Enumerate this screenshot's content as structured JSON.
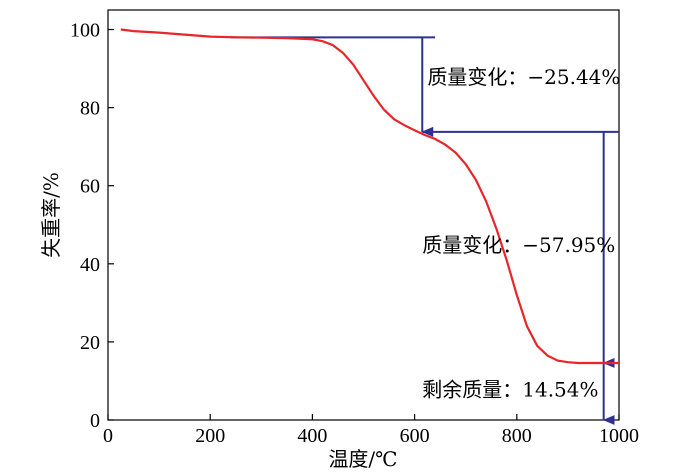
{
  "chart_data": {
    "type": "line",
    "title": "",
    "xlabel": "温度/℃",
    "ylabel": "失重率/%",
    "xlim": [
      0,
      1000
    ],
    "ylim": [
      0,
      105
    ],
    "x_ticks": [
      0,
      200,
      400,
      600,
      800,
      1000
    ],
    "y_ticks": [
      0,
      20,
      40,
      60,
      80,
      100
    ],
    "x_tick_labels": [
      "0",
      "200",
      "400",
      "600",
      "800",
      "1000"
    ],
    "y_tick_labels": [
      "0",
      "20",
      "40",
      "60",
      "80",
      "100"
    ],
    "grid": false,
    "legend": "none",
    "series": [
      {
        "color": "#e8262a",
        "x": [
          25,
          50,
          100,
          150,
          200,
          250,
          300,
          350,
          400,
          420,
          440,
          460,
          480,
          500,
          520,
          540,
          560,
          580,
          600,
          620,
          640,
          660,
          680,
          700,
          720,
          740,
          760,
          780,
          800,
          820,
          840,
          860,
          880,
          900,
          920,
          940,
          960,
          980,
          1000
        ],
        "y": [
          100,
          99.6,
          99.2,
          98.7,
          98.2,
          98.0,
          97.9,
          97.8,
          97.5,
          97.0,
          96.0,
          94.0,
          91.0,
          87.0,
          83.0,
          79.5,
          77.0,
          75.5,
          74.2,
          73.0,
          72.0,
          70.5,
          68.5,
          65.5,
          61.5,
          56.0,
          49.0,
          41.0,
          32.0,
          24.0,
          19.0,
          16.5,
          15.2,
          14.8,
          14.6,
          14.6,
          14.6,
          14.6,
          14.6
        ]
      }
    ],
    "annotations": [
      {
        "text": "质量变化：−25.44%",
        "x": 625,
        "y": 86
      },
      {
        "text": "质量变化：−57.95%",
        "x": 615,
        "y": 43
      },
      {
        "text": "剩余质量：14.54%",
        "x": 615,
        "y": 6
      }
    ],
    "guide_color": "#2e3192",
    "guides": {
      "level1": 98.0,
      "level2": 73.8,
      "level3": 14.6,
      "line1_x": [
        240,
        640
      ],
      "line2_x": [
        615,
        1000
      ],
      "arrow1_x": 615,
      "arrow2_x": 970
    }
  }
}
